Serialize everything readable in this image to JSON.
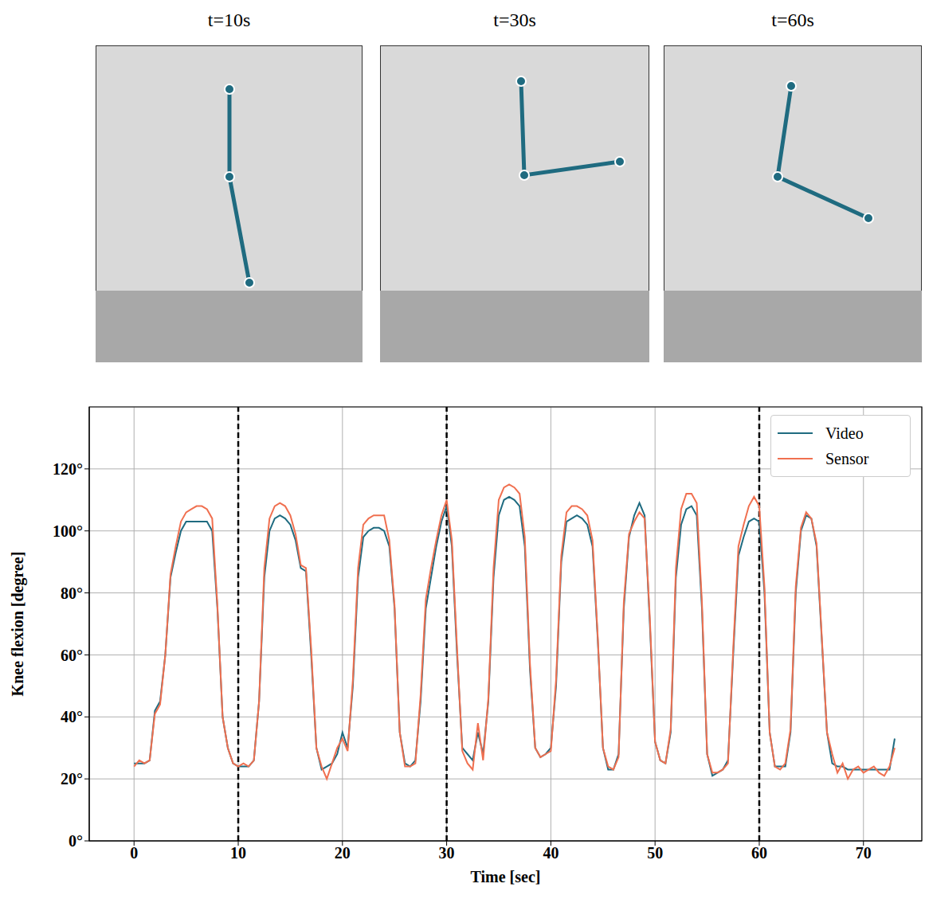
{
  "panels": [
    {
      "title": "t=10s"
    },
    {
      "title": "t=30s"
    },
    {
      "title": "t=60s"
    }
  ],
  "chart_data": {
    "type": "line",
    "x_label": "Time [sec]",
    "y_label": "Knee flexion [degree]",
    "xlim": [
      -4.3,
      75.6
    ],
    "xticks": [
      0,
      10,
      20,
      30,
      40,
      50,
      60,
      70
    ],
    "ylim": [
      0,
      140
    ],
    "yticks": [
      {
        "value": 0,
        "label": "0°"
      },
      {
        "value": 20,
        "label": "20°"
      },
      {
        "value": 40,
        "label": "40°"
      },
      {
        "value": 60,
        "label": "60°"
      },
      {
        "value": 80,
        "label": "80°"
      },
      {
        "value": 100,
        "label": "100°"
      },
      {
        "value": 120,
        "label": "120°"
      }
    ],
    "grid": true,
    "legend": "upper right",
    "vlines": [
      10,
      30,
      60
    ],
    "x": [
      0,
      0.5,
      1,
      1.5,
      2,
      2.5,
      3,
      3.5,
      4,
      4.5,
      5,
      5.5,
      6,
      6.5,
      7,
      7.5,
      8,
      8.5,
      9,
      9.5,
      10,
      10.5,
      11,
      11.5,
      12,
      12.5,
      13,
      13.5,
      14,
      14.5,
      15,
      15.5,
      16,
      16.5,
      17,
      17.5,
      18,
      18.5,
      19,
      19.5,
      20,
      20.5,
      21,
      21.5,
      22,
      22.5,
      23,
      23.5,
      24,
      24.5,
      25,
      25.5,
      26,
      26.5,
      27,
      27.5,
      28,
      28.5,
      29,
      29.5,
      30,
      30.5,
      31,
      31.5,
      32,
      32.5,
      33,
      33.5,
      34,
      34.5,
      35,
      35.5,
      36,
      36.5,
      37,
      37.5,
      38,
      38.5,
      39,
      39.5,
      40,
      40.5,
      41,
      41.5,
      42,
      42.5,
      43,
      43.5,
      44,
      44.5,
      45,
      45.5,
      46,
      46.5,
      47,
      47.5,
      48,
      48.5,
      49,
      49.5,
      50,
      50.5,
      51,
      51.5,
      52,
      52.5,
      53,
      53.5,
      54,
      54.5,
      55,
      55.5,
      56,
      56.5,
      57,
      57.5,
      58,
      58.5,
      59,
      59.5,
      60,
      60.5,
      61,
      61.5,
      62,
      62.5,
      63,
      63.5,
      64,
      64.5,
      65,
      65.5,
      66,
      66.5,
      67,
      67.5,
      68,
      68.5,
      69,
      69.5,
      70,
      70.5,
      71,
      71.5,
      72,
      72.5,
      73
    ],
    "series": [
      {
        "name": "Video",
        "color": "#1f6b80",
        "values": [
          25,
          25,
          25,
          26,
          42,
          45,
          60,
          85,
          93,
          100,
          103,
          103,
          103,
          103,
          103,
          100,
          75,
          40,
          30,
          25,
          24,
          24,
          24,
          26,
          45,
          85,
          100,
          104,
          105,
          104,
          102,
          97,
          88,
          87,
          60,
          30,
          23,
          24,
          25,
          28,
          35,
          30,
          50,
          85,
          98,
          100,
          101,
          101,
          100,
          95,
          75,
          35,
          25,
          24,
          26,
          45,
          75,
          85,
          95,
          103,
          108,
          95,
          60,
          30,
          28,
          26,
          35,
          28,
          45,
          85,
          105,
          110,
          111,
          110,
          108,
          95,
          55,
          30,
          27,
          28,
          30,
          50,
          90,
          103,
          104,
          105,
          104,
          102,
          95,
          65,
          30,
          23,
          23,
          28,
          75,
          98,
          105,
          109,
          105,
          70,
          32,
          26,
          25,
          35,
          85,
          102,
          107,
          108,
          105,
          75,
          28,
          21,
          22,
          23,
          26,
          60,
          92,
          98,
          103,
          104,
          103,
          80,
          35,
          24,
          24,
          24,
          35,
          80,
          100,
          105,
          104,
          95,
          65,
          35,
          25,
          24,
          24,
          23,
          23,
          23,
          23,
          23,
          23,
          23,
          23,
          23,
          33
        ]
      },
      {
        "name": "Sensor",
        "color": "#f07050",
        "values": [
          24,
          26,
          25,
          26,
          41,
          44,
          60,
          86,
          95,
          103,
          106,
          107,
          108,
          108,
          107,
          104,
          76,
          40,
          30,
          25,
          24,
          25,
          24,
          26,
          45,
          88,
          104,
          108,
          109,
          108,
          105,
          99,
          89,
          88,
          62,
          30,
          24,
          20,
          25,
          30,
          33,
          29,
          52,
          88,
          102,
          104,
          105,
          105,
          105,
          97,
          76,
          35,
          24,
          24,
          25,
          47,
          78,
          88,
          97,
          105,
          110,
          97,
          62,
          29,
          25,
          23,
          38,
          26,
          46,
          88,
          110,
          114,
          115,
          114,
          112,
          98,
          57,
          30,
          27,
          28,
          29,
          52,
          92,
          106,
          108,
          108,
          107,
          105,
          97,
          66,
          30,
          24,
          23,
          27,
          77,
          99,
          103,
          106,
          104,
          72,
          32,
          26,
          25,
          36,
          88,
          107,
          112,
          112,
          109,
          77,
          28,
          22,
          22,
          23,
          25,
          62,
          95,
          102,
          108,
          111,
          108,
          82,
          35,
          24,
          23,
          25,
          36,
          82,
          101,
          106,
          104,
          96,
          66,
          35,
          28,
          22,
          25,
          20,
          23,
          24,
          22,
          23,
          24,
          22,
          21,
          24,
          30
        ]
      }
    ]
  }
}
